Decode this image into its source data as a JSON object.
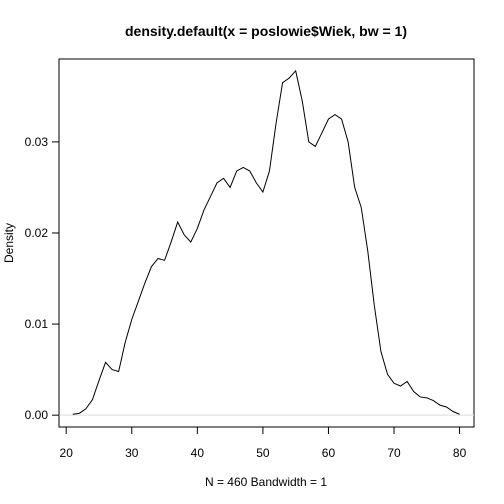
{
  "chart_data": {
    "type": "line",
    "title": "density.default(x = poslowie$Wiek, bw = 1)",
    "xlabel": "N = 460   Bandwidth = 1",
    "ylabel": "Density",
    "xlim": [
      18.9,
      82.2
    ],
    "ylim": [
      -0.0013,
      0.0391
    ],
    "x_ticks": [
      20,
      30,
      40,
      50,
      60,
      70,
      80
    ],
    "y_ticks": [
      0.0,
      0.01,
      0.02,
      0.03
    ],
    "x_tick_labels": [
      "20",
      "30",
      "40",
      "50",
      "60",
      "70",
      "80"
    ],
    "y_tick_labels": [
      "0.00",
      "0.01",
      "0.02",
      "0.03"
    ],
    "series": [
      {
        "x": [
          21.0,
          22.0,
          23.0,
          24.0,
          25.0,
          26.0,
          27.0,
          28.0,
          29.0,
          30.0,
          31.0,
          32.0,
          33.0,
          34.0,
          35.0,
          36.0,
          37.0,
          38.0,
          39.0,
          40.0,
          41.0,
          42.0,
          43.0,
          44.0,
          45.0,
          46.0,
          47.0,
          48.0,
          49.0,
          50.0,
          51.0,
          52.0,
          53.0,
          54.0,
          55.0,
          56.0,
          57.0,
          58.0,
          59.0,
          60.0,
          61.0,
          62.0,
          63.0,
          64.0,
          65.0,
          66.0,
          67.0,
          68.0,
          69.0,
          70.0,
          71.0,
          72.0,
          73.0,
          74.0,
          75.0,
          76.0,
          77.0,
          78.0,
          79.0,
          80.0
        ],
        "y": [
          0.0001,
          0.0002,
          0.0007,
          0.0017,
          0.0038,
          0.0058,
          0.005,
          0.0048,
          0.008,
          0.0105,
          0.0125,
          0.0145,
          0.0163,
          0.0172,
          0.017,
          0.019,
          0.0212,
          0.0198,
          0.019,
          0.0205,
          0.0225,
          0.024,
          0.0255,
          0.026,
          0.025,
          0.0268,
          0.0272,
          0.0268,
          0.0255,
          0.0245,
          0.0268,
          0.032,
          0.0365,
          0.037,
          0.0378,
          0.0345,
          0.03,
          0.0295,
          0.031,
          0.0325,
          0.033,
          0.0325,
          0.03,
          0.025,
          0.0228,
          0.018,
          0.012,
          0.007,
          0.0045,
          0.0035,
          0.0032,
          0.0037,
          0.0026,
          0.002,
          0.0019,
          0.0016,
          0.0011,
          0.0009,
          0.0004,
          0.0001
        ]
      }
    ]
  }
}
